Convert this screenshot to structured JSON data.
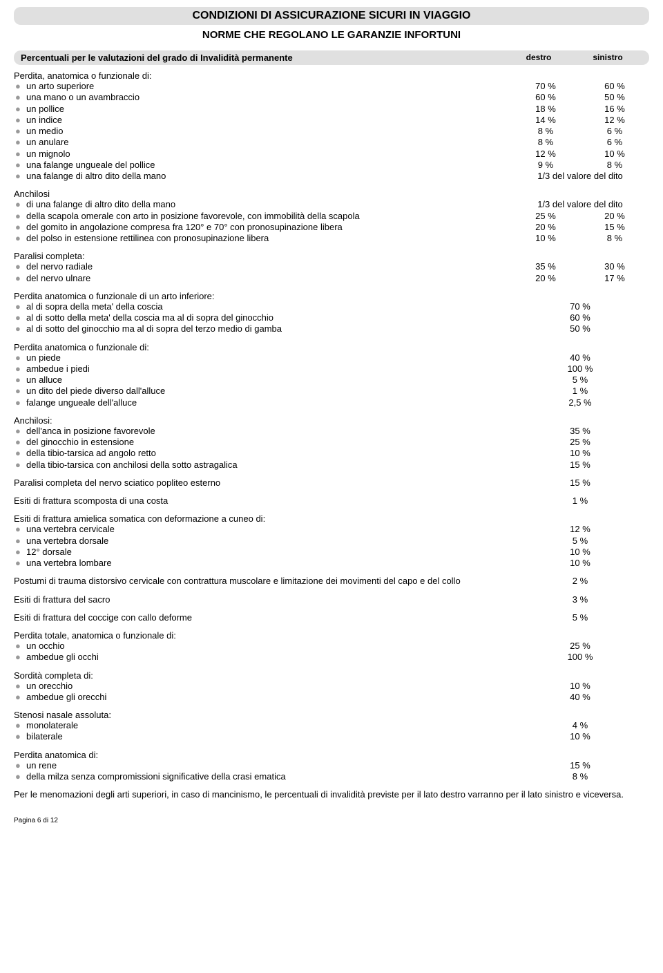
{
  "title": "CONDIZIONI DI ASSICURAZIONE SICURI IN VIAGGIO",
  "subtitle": "NORME CHE REGOLANO LE GARANZIE INFORTUNI",
  "section_header": {
    "title": "Percentuali per le valutazioni del grado di Invalidità permanente",
    "col1": "destro",
    "col2": "sinistro"
  },
  "groups": [
    {
      "title": "Perdita, anatomica o funzionale di:",
      "rows": [
        {
          "label": "un arto superiore",
          "v1": "70 %",
          "v2": "60 %"
        },
        {
          "label": "una mano o un avambraccio",
          "v1": "60 %",
          "v2": "50 %"
        },
        {
          "label": "un pollice",
          "v1": "18 %",
          "v2": "16 %"
        },
        {
          "label": "un indice",
          "v1": "14 %",
          "v2": "12 %"
        },
        {
          "label": "un medio",
          "v1": "8 %",
          "v2": "6 %"
        },
        {
          "label": "un anulare",
          "v1": "8 %",
          "v2": "6 %"
        },
        {
          "label": "un mignolo",
          "v1": "12 %",
          "v2": "10 %"
        },
        {
          "label": "una falange ungueale del pollice",
          "v1": "9 %",
          "v2": "8 %"
        },
        {
          "label": "una falange di altro dito della mano",
          "vspan": "1/3 del valore del dito"
        }
      ]
    },
    {
      "title": "Anchilosi",
      "rows": [
        {
          "label": "di una falange di altro dito della mano",
          "vspan": "1/3 del valore del dito"
        },
        {
          "label": "della scapola omerale con arto in posizione favorevole, con immobilità della scapola",
          "v1": "25 %",
          "v2": "20 %"
        },
        {
          "label": "del gomito in angolazione compresa fra 120° e 70° con pronosupinazione libera",
          "v1": "20 %",
          "v2": "15 %"
        },
        {
          "label": "del polso in estensione rettilinea con pronosupinazione libera",
          "v1": "10 %",
          "v2": "8 %"
        }
      ]
    },
    {
      "title": "Paralisi completa:",
      "rows": [
        {
          "label": "del nervo radiale",
          "v1": "35 %",
          "v2": "30 %"
        },
        {
          "label": "del nervo ulnare",
          "v1": "20 %",
          "v2": "17 %"
        }
      ]
    },
    {
      "title": "Perdita anatomica o funzionale di un arto inferiore:",
      "rows": [
        {
          "label": "al di sopra della meta' della coscia",
          "vc": "70 %"
        },
        {
          "label": "al di sotto della meta' della coscia ma al di sopra del ginocchio",
          "vc": "60 %"
        },
        {
          "label": "al di sotto del ginocchio  ma al di sopra del terzo medio di gamba",
          "vc": "50 %"
        }
      ]
    },
    {
      "title": "Perdita anatomica o funzionale di:",
      "rows": [
        {
          "label": "un piede",
          "vc": "40 %"
        },
        {
          "label": "ambedue  i piedi",
          "vc": "100 %"
        },
        {
          "label": "un alluce",
          "vc": "5 %"
        },
        {
          "label": "un dito del piede diverso dall'alluce",
          "vc": "1 %"
        },
        {
          "label": "falange ungueale dell'alluce",
          "vc": "2,5 %"
        }
      ]
    },
    {
      "title": "Anchilosi:",
      "rows": [
        {
          "label": "dell'anca in posizione favorevole",
          "vc": "35 %"
        },
        {
          "label": "del ginocchio in estensione",
          "vc": "25 %"
        },
        {
          "label": "della tibio-tarsica ad angolo retto",
          "vc": "10 %"
        },
        {
          "label": "della tibio-tarsica con anchilosi della sotto astragalica",
          "vc": "15 %"
        }
      ]
    }
  ],
  "plain_rows_1": [
    {
      "label": "Paralisi completa del nervo sciatico popliteo esterno",
      "vc": "15 %"
    },
    {
      "label": "Esiti di frattura scomposta di una costa",
      "vc": "1 %"
    }
  ],
  "group_frattura": {
    "title": "Esiti di frattura amielica somatica con deformazione a cuneo di:",
    "rows": [
      {
        "label": "una vertebra cervicale",
        "vc": "12 %"
      },
      {
        "label": "una vertebra dorsale",
        "vc": "5 %"
      },
      {
        "label": "12° dorsale",
        "vc": "10 %"
      },
      {
        "label": "una vertebra lombare",
        "vc": "10 %"
      }
    ]
  },
  "plain_rows_2": [
    {
      "label": "Postumi di trauma distorsivo cervicale con contrattura muscolare e limitazione dei movimenti del capo e del collo",
      "vc": "2 %"
    },
    {
      "label": "Esiti di frattura del sacro",
      "vc": "3 %"
    },
    {
      "label": "Esiti di frattura del coccige con callo deforme",
      "vc": "5 %"
    }
  ],
  "groups_2": [
    {
      "title": "Perdita totale, anatomica o funzionale di:",
      "rows": [
        {
          "label": "un occhio",
          "vc": "25 %"
        },
        {
          "label": "ambedue gli occhi",
          "vc": "100 %"
        }
      ]
    },
    {
      "title": "Sordità completa di:",
      "rows": [
        {
          "label": "un orecchio",
          "vc": "10 %"
        },
        {
          "label": "ambedue gli orecchi",
          "vc": "40 %"
        }
      ]
    },
    {
      "title": "Stenosi nasale assoluta:",
      "rows": [
        {
          "label": "monolaterale",
          "vc": "4 %"
        },
        {
          "label": "bilaterale",
          "vc": "10 %"
        }
      ]
    },
    {
      "title": "Perdita anatomica di:",
      "rows": [
        {
          "label": "un rene",
          "vc": "15 %"
        },
        {
          "label": "della milza senza compromissioni significative della crasi ematica",
          "vc": "8 %"
        }
      ]
    }
  ],
  "footnote": "Per le menomazioni degli arti superiori, in caso di mancinismo, le percentuali di invalidità previste per il lato destro varranno per il lato sinistro e viceversa.",
  "pagenum": "Pagina 6 di 12",
  "bullet": "●"
}
